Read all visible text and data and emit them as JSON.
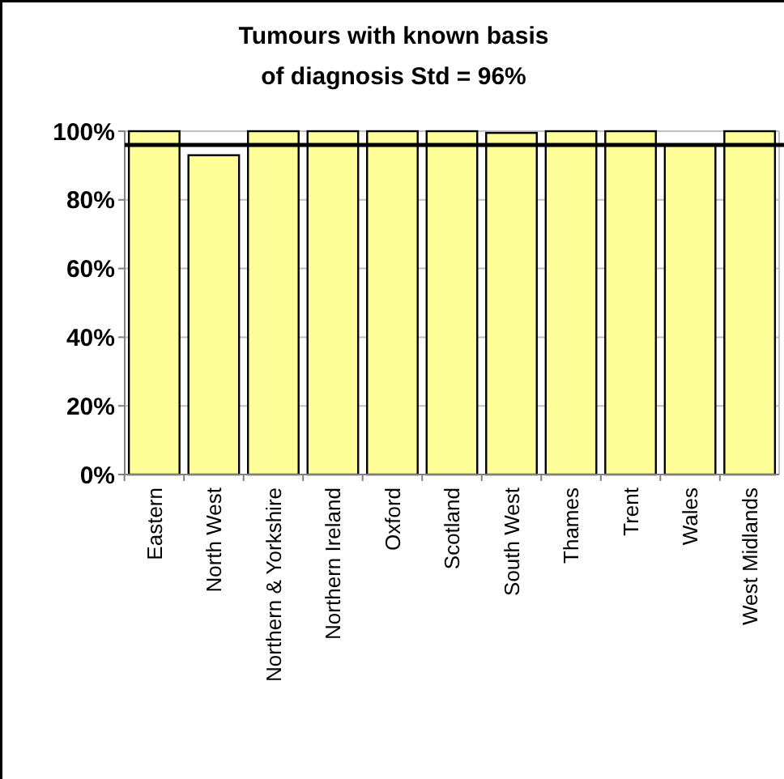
{
  "chart_data": {
    "type": "bar",
    "title": "Tumours with known basis of diagnosis Std = 96%",
    "categories": [
      "Eastern",
      "North West",
      "Northern & Yorkshire",
      "Northern Ireland",
      "Oxford",
      "Scotland",
      "South West",
      "Thames",
      "Trent",
      "Wales",
      "West Midlands"
    ],
    "values": [
      100,
      93,
      100,
      100,
      100,
      100,
      99.5,
      100,
      100,
      96,
      100
    ],
    "color": "#ffff99",
    "ylim": [
      0,
      100
    ],
    "yticks": [
      {
        "value": 0,
        "label": "0%"
      },
      {
        "value": 20,
        "label": "20%"
      },
      {
        "value": 40,
        "label": "40%"
      },
      {
        "value": 60,
        "label": "60%"
      },
      {
        "value": 80,
        "label": "80%"
      },
      {
        "value": 100,
        "label": "100%"
      }
    ],
    "grid": "y",
    "ref_lines": [
      {
        "axis": "y",
        "value": 96,
        "color": "#000000"
      }
    ]
  }
}
